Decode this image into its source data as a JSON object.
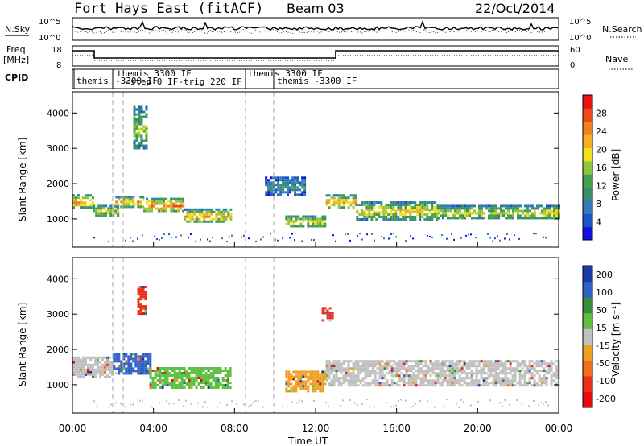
{
  "header": {
    "title": "Fort Hays East (fitACF)",
    "beam": "Beam 03",
    "date": "22/Oct/2014"
  },
  "side_labels": {
    "nsky": "N.Sky",
    "nsearch": "N.Search",
    "freq": "Freq.",
    "freq_unit": "[MHz]",
    "nave": "Nave",
    "cpid": "CPID"
  },
  "noise_panel": {
    "left_ticks": [
      "10^5",
      "10^0"
    ],
    "right_ticks": [
      "10^5",
      "10^0"
    ]
  },
  "freq_panel": {
    "left_ticks": [
      "18",
      "8"
    ],
    "right_ticks": [
      "60",
      "0"
    ]
  },
  "cpid_labels": [
    "themis",
    "themis 3300 IF",
    "-3300 IF",
    "-step 0 IF-trig 220 IF",
    "themis 3300 IF",
    "themis -3300 IF"
  ],
  "chart_data": [
    {
      "type": "heatmap",
      "name": "power",
      "ylabel": "Slant Range [km]",
      "yticks": [
        "1000",
        "2000",
        "3000",
        "4000"
      ],
      "ylim": [
        200,
        4600
      ],
      "xlim": [
        0,
        24
      ],
      "colorbar": {
        "label": "Power [dB]",
        "ticks": [
          "4",
          "8",
          "12",
          "16",
          "20",
          "24",
          "28"
        ],
        "colors": [
          "#1010e0",
          "#1a55c8",
          "#2e7db8",
          "#3a8f6a",
          "#46a050",
          "#8cc83c",
          "#f0e020",
          "#f4b020",
          "#f08020",
          "#ec4a1a",
          "#e81410"
        ]
      },
      "features": [
        {
          "x": [
            0.0,
            1.0
          ],
          "y": [
            1300,
            1700
          ],
          "level": 0.7
        },
        {
          "x": [
            1.0,
            2.2
          ],
          "y": [
            1100,
            1400
          ],
          "level": 0.6
        },
        {
          "x": [
            2.0,
            3.5
          ],
          "y": [
            1350,
            1650
          ],
          "level": 0.75
        },
        {
          "x": [
            3.5,
            5.5
          ],
          "y": [
            1200,
            1600
          ],
          "level": 0.8
        },
        {
          "x": [
            5.5,
            7.8
          ],
          "y": [
            900,
            1300
          ],
          "level": 0.7
        },
        {
          "x": [
            3.0,
            3.6
          ],
          "y": [
            3000,
            4200
          ],
          "level": 0.5
        },
        {
          "x": [
            9.5,
            11.5
          ],
          "y": [
            1700,
            2200
          ],
          "level": 0.3
        },
        {
          "x": [
            10.5,
            12.5
          ],
          "y": [
            800,
            1100
          ],
          "level": 0.65
        },
        {
          "x": [
            12.5,
            14.0
          ],
          "y": [
            1300,
            1700
          ],
          "level": 0.7
        },
        {
          "x": [
            14.0,
            18.0
          ],
          "y": [
            1000,
            1500
          ],
          "level": 0.65
        },
        {
          "x": [
            18.0,
            24.0
          ],
          "y": [
            1000,
            1400
          ],
          "level": 0.6
        }
      ]
    },
    {
      "type": "heatmap",
      "name": "velocity",
      "ylabel": "Slant Range [km]",
      "yticks": [
        "1000",
        "2000",
        "3000",
        "4000"
      ],
      "ylim": [
        200,
        4600
      ],
      "xlim": [
        0,
        24
      ],
      "xticks": [
        "00:00",
        "04:00",
        "08:00",
        "12:00",
        "16:00",
        "20:00",
        "00:00"
      ],
      "xlabel": "Time UT",
      "colorbar": {
        "label": "Velocity [m s⁻¹]",
        "ticks": [
          "200",
          "100",
          "50",
          "15",
          "-15",
          "-50",
          "-100",
          "-200"
        ],
        "colors": [
          "#1a3aa8",
          "#3060c8",
          "#3a8a40",
          "#5cc040",
          "#c0c0c0",
          "#f0a020",
          "#f07020",
          "#e83018",
          "#e80c0c"
        ]
      },
      "features": [
        {
          "x": [
            0.0,
            2.0
          ],
          "y": [
            1200,
            1800
          ],
          "color": "#c0c0c0"
        },
        {
          "x": [
            2.0,
            3.8
          ],
          "y": [
            1300,
            1900
          ],
          "color": "#3060c8"
        },
        {
          "x": [
            3.8,
            7.8
          ],
          "y": [
            900,
            1500
          ],
          "color": "#5cc040"
        },
        {
          "x": [
            3.2,
            3.6
          ],
          "y": [
            3000,
            3800
          ],
          "color": "#e83018"
        },
        {
          "x": [
            10.5,
            12.5
          ],
          "y": [
            800,
            1400
          ],
          "color": "#f0a020"
        },
        {
          "x": [
            12.3,
            12.8
          ],
          "y": [
            2800,
            3200
          ],
          "color": "#e83018"
        },
        {
          "x": [
            12.5,
            24.0
          ],
          "y": [
            1000,
            1700
          ],
          "color": "#c0c0c0"
        }
      ]
    }
  ]
}
